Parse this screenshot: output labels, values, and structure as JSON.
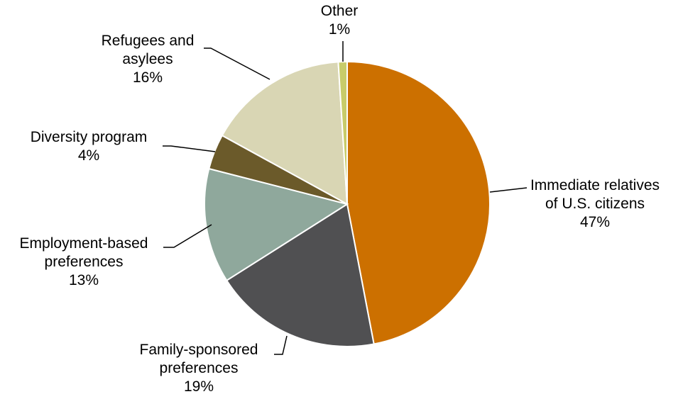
{
  "chart_data": {
    "type": "pie",
    "title": "",
    "slices": [
      {
        "name": "Immediate relatives of U.S. citizens",
        "label_lines": [
          "Immediate relatives",
          "of U.S. citizens"
        ],
        "value": 47,
        "value_label": "47%",
        "color": "#CC7000"
      },
      {
        "name": "Family-sponsored preferences",
        "label_lines": [
          "Family-sponsored",
          "preferences"
        ],
        "value": 19,
        "value_label": "19%",
        "color": "#505052"
      },
      {
        "name": "Employment-based preferences",
        "label_lines": [
          "Employment-based",
          "preferences"
        ],
        "value": 13,
        "value_label": "13%",
        "color": "#8FA89C"
      },
      {
        "name": "Diversity program",
        "label_lines": [
          "Diversity program"
        ],
        "value": 4,
        "value_label": "4%",
        "color": "#6B5A2A"
      },
      {
        "name": "Refugees and asylees",
        "label_lines": [
          "Refugees and",
          "asylees"
        ],
        "value": 16,
        "value_label": "16%",
        "color": "#D9D6B4"
      },
      {
        "name": "Other",
        "label_lines": [
          "Other"
        ],
        "value": 1,
        "value_label": "1%",
        "color": "#C8CC6A"
      }
    ],
    "start": "12 o'clock",
    "direction": "clockwise"
  }
}
